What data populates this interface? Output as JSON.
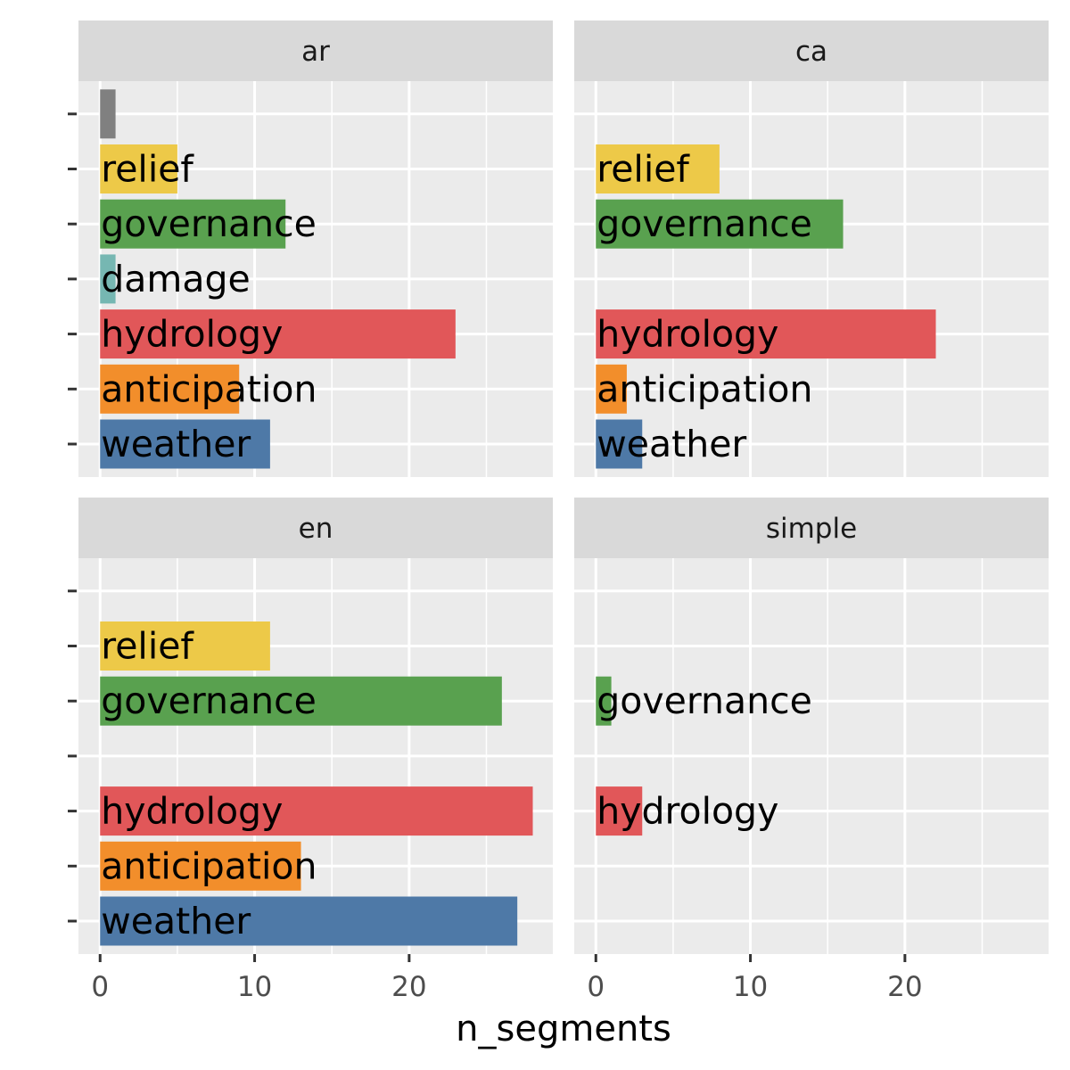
{
  "chart_data": {
    "type": "bar",
    "orientation": "horizontal",
    "facets": [
      "ar",
      "ca",
      "en",
      "simple"
    ],
    "categories": [
      "weather",
      "anticipation",
      "hydrology",
      "damage",
      "governance",
      "relief",
      ""
    ],
    "colors": {
      "weather": "#4E79A7",
      "anticipation": "#F28E2B",
      "hydrology": "#E15759",
      "damage": "#76B7B2",
      "governance": "#59A14F",
      "relief": "#EDC948",
      "": "#808080"
    },
    "panels": [
      {
        "facet": "ar",
        "values": {
          "weather": 11,
          "anticipation": 9,
          "hydrology": 23,
          "damage": 1,
          "governance": 12,
          "relief": 5,
          "": 1
        }
      },
      {
        "facet": "ca",
        "values": {
          "weather": 3,
          "anticipation": 2,
          "hydrology": 22,
          "governance": 16,
          "relief": 8
        }
      },
      {
        "facet": "en",
        "values": {
          "weather": 27,
          "anticipation": 13,
          "hydrology": 28,
          "governance": 26,
          "relief": 11
        }
      },
      {
        "facet": "simple",
        "values": {
          "hydrology": 3,
          "governance": 1
        }
      }
    ],
    "xlabel": "n_segments",
    "ylabel": "",
    "xlim": [
      -1.4,
      29.5
    ],
    "xticks": [
      0,
      10,
      20
    ],
    "grid": true,
    "legend": "none"
  }
}
